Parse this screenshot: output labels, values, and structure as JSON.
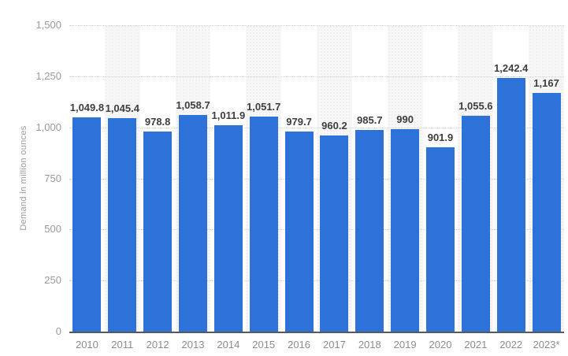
{
  "page": {
    "background": "#ffffff"
  },
  "chart_data": {
    "type": "bar",
    "title": "",
    "xlabel": "",
    "ylabel": "Demand in million ounces",
    "ylim": [
      0,
      1500
    ],
    "grid": "horizontal dotted lines every 250",
    "legend": "none",
    "background_bands": "alternating vertical light-gray dotted-texture bands behind every second column",
    "categories": [
      "2010",
      "2011",
      "2012",
      "2013",
      "2014",
      "2015",
      "2016",
      "2017",
      "2018",
      "2019",
      "2020",
      "2021",
      "2022",
      "2023*"
    ],
    "values": [
      1049.8,
      1045.4,
      978.8,
      1058.7,
      1011.9,
      1051.7,
      979.7,
      960.2,
      985.7,
      990,
      901.9,
      1055.6,
      1242.4,
      1167
    ],
    "value_labels": [
      "1,049.8",
      "1,045.4",
      "978.8",
      "1,058.7",
      "1,011.9",
      "1,051.7",
      "979.7",
      "960.2",
      "985.7",
      "990",
      "901.9",
      "1,055.6",
      "1,242.4",
      "1,167"
    ],
    "yticks": [
      {
        "value": 1500,
        "label": "1,500"
      },
      {
        "value": 1250,
        "label": "1,250"
      },
      {
        "value": 1000,
        "label": "1,000"
      },
      {
        "value": 750,
        "label": "750"
      },
      {
        "value": 500,
        "label": "500"
      },
      {
        "value": 250,
        "label": "250"
      },
      {
        "value": 0,
        "label": "0"
      }
    ],
    "colors": {
      "bar": "#2c72d8",
      "band": "#f7f7f7",
      "gridline": "#d4d4d4",
      "axis_line": "#58595b",
      "y_tick_text": "#9a9a9a",
      "x_tick_text": "#8c8c8c",
      "value_label_text": "#3d3d3d"
    }
  }
}
